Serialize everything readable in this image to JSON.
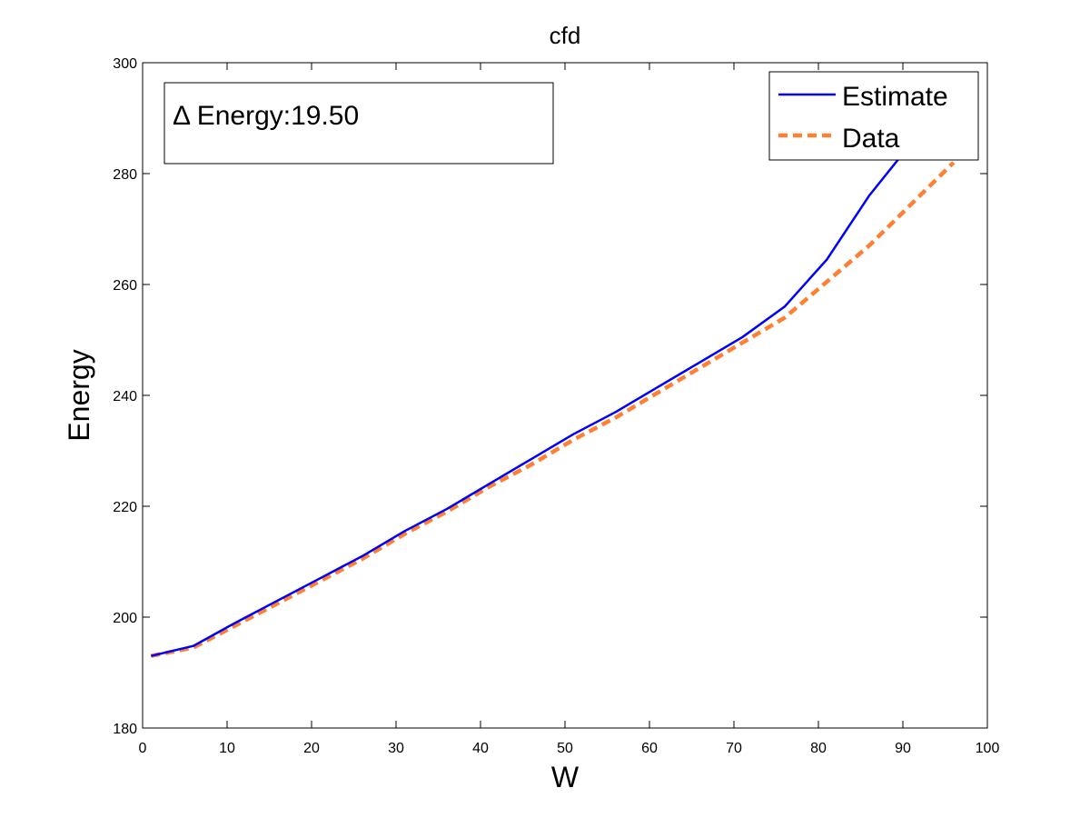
{
  "chart_data": {
    "type": "line",
    "title": "cfd",
    "xlabel": "W",
    "ylabel": "Energy",
    "xlim": [
      0,
      100
    ],
    "ylim": [
      180,
      300
    ],
    "xticks": [
      0,
      10,
      20,
      30,
      40,
      50,
      60,
      70,
      80,
      90,
      100
    ],
    "yticks": [
      180,
      200,
      220,
      240,
      260,
      280,
      300
    ],
    "grid": false,
    "legend_position": "top-right",
    "annotation": "Δ Energy:19.50",
    "series": [
      {
        "name": "Estimate",
        "color": "#0000ff",
        "style": "solid",
        "x": [
          1,
          6,
          11,
          16,
          21,
          26,
          31,
          36,
          41,
          46,
          51,
          56,
          61,
          66,
          71,
          76,
          81,
          86,
          91
        ],
        "y": [
          193,
          194.8,
          199,
          203,
          207,
          211,
          215.5,
          219.5,
          224,
          228.5,
          233,
          237,
          241.5,
          246,
          250.5,
          256,
          264.5,
          276,
          285.5
        ]
      },
      {
        "name": "Data",
        "color": "#ff7f33",
        "style": "dashed",
        "x": [
          1,
          6,
          11,
          16,
          21,
          26,
          31,
          36,
          41,
          46,
          51,
          56,
          61,
          66,
          71,
          76,
          81,
          86,
          91,
          96
        ],
        "y": [
          193,
          194.5,
          198.5,
          202.5,
          206.5,
          210.5,
          215,
          219,
          223.5,
          227.5,
          232,
          236,
          240.5,
          245,
          249.5,
          254,
          260.5,
          267,
          274.5,
          282
        ]
      }
    ]
  }
}
